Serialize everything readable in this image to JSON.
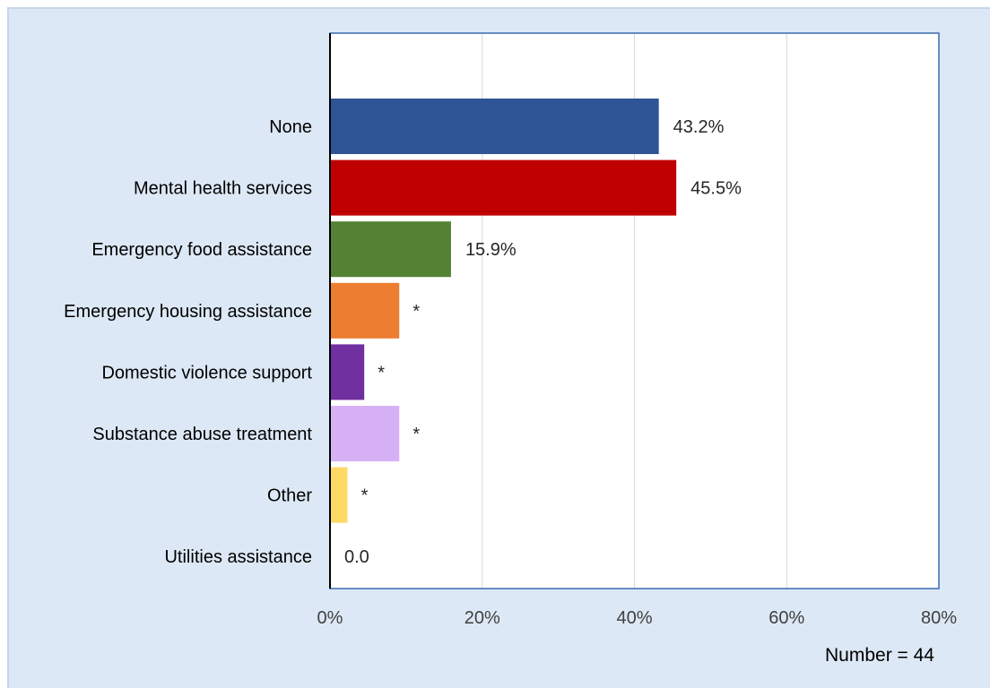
{
  "colors": {
    "background": "#dce8f5",
    "frame": "#3a6ab0",
    "grid": "#d9d9d9",
    "axis": "#000000"
  },
  "chart_data": {
    "type": "bar",
    "orientation": "horizontal",
    "categories": [
      "None",
      "Mental health services",
      "Emergency food assistance",
      "Emergency housing assistance",
      "Domestic violence support",
      "Substance abuse treatment",
      "Other",
      "Utilities assistance"
    ],
    "values": [
      43.2,
      45.5,
      15.9,
      9.1,
      4.5,
      9.1,
      2.3,
      0.0
    ],
    "data_labels": [
      "43.2%",
      "45.5%",
      "15.9%",
      "*",
      "*",
      "*",
      "*",
      "0.0"
    ],
    "bar_colors": [
      "#2f5597",
      "#c00000",
      "#548235",
      "#ed7d31",
      "#7030a0",
      "#d7b1f5",
      "#ffd966",
      "#000000"
    ],
    "x_ticks": [
      "0%",
      "20%",
      "40%",
      "60%",
      "80%"
    ],
    "xlim": [
      0,
      80
    ],
    "grid": true,
    "title": "",
    "xlabel": "",
    "ylabel": "",
    "legend": "none"
  },
  "footnote": "Number = 44"
}
